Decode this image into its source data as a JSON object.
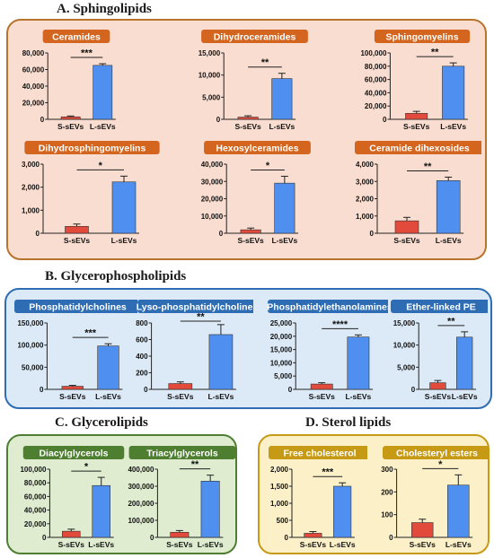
{
  "sections": {
    "a": "A. Sphingolipids",
    "b": "B. Glycerophospholipids",
    "c": "C. Glycerolipids",
    "d": "D. Sterol lipids"
  },
  "colors": {
    "s_sevs": "#e24a3b",
    "l_sevs": "#4f8ff0",
    "sphingolipids_badge": "#d4651f",
    "glycerophospholipids_badge": "#2e6db4",
    "glycerolipids_badge": "#4e7f30",
    "sterol_badge": "#c79a16"
  },
  "chart_data": [
    {
      "type": "bar",
      "title": "Ceramides",
      "categories": [
        "S-sEVs",
        "L-sEVs"
      ],
      "values": [
        3000,
        65000
      ],
      "errors": [
        1000,
        2000
      ],
      "ylim": [
        0,
        80000
      ],
      "yticks": [
        "0",
        "20,000",
        "40,000",
        "60,000",
        "80,000"
      ],
      "significance": "***",
      "group": "sphingolipids"
    },
    {
      "type": "bar",
      "title": "Dihydroceramides",
      "categories": [
        "S-sEVs",
        "L-sEVs"
      ],
      "values": [
        500,
        9200
      ],
      "errors": [
        300,
        1200
      ],
      "ylim": [
        0,
        15000
      ],
      "yticks": [
        "0",
        "5,000",
        "10,000",
        "15,000"
      ],
      "significance": "**",
      "group": "sphingolipids"
    },
    {
      "type": "bar",
      "title": "Sphingomyelins",
      "categories": [
        "S-sEVs",
        "L-sEVs"
      ],
      "values": [
        9000,
        80000
      ],
      "errors": [
        3000,
        5000
      ],
      "ylim": [
        0,
        100000
      ],
      "yticks": [
        "0",
        "20,000",
        "40,000",
        "60,000",
        "80,000",
        "100,000"
      ],
      "significance": "**",
      "group": "sphingolipids"
    },
    {
      "type": "bar",
      "title": "Dihydrosphingomyelins",
      "categories": [
        "S-sEVs",
        "L-sEVs"
      ],
      "values": [
        300,
        2230
      ],
      "errors": [
        100,
        250
      ],
      "ylim": [
        0,
        3000
      ],
      "yticks": [
        "0",
        "1,000",
        "2,000",
        "3,000"
      ],
      "significance": "*",
      "group": "sphingolipids"
    },
    {
      "type": "bar",
      "title": "Hexosylceramides",
      "categories": [
        "S-sEVs",
        "L-sEVs"
      ],
      "values": [
        2000,
        29000
      ],
      "errors": [
        1000,
        4000
      ],
      "ylim": [
        0,
        40000
      ],
      "yticks": [
        "0",
        "10,000",
        "20,000",
        "30,000",
        "40,000"
      ],
      "significance": "*",
      "group": "sphingolipids"
    },
    {
      "type": "bar",
      "title": "Ceramide dihexosides",
      "categories": [
        "S-sEVs",
        "L-sEVs"
      ],
      "values": [
        720,
        3050
      ],
      "errors": [
        200,
        200
      ],
      "ylim": [
        0,
        4000
      ],
      "yticks": [
        "0",
        "1,000",
        "2,000",
        "3,000",
        "4,000"
      ],
      "significance": "**",
      "group": "sphingolipids"
    },
    {
      "type": "bar",
      "title": "Phosphatidylcholines",
      "categories": [
        "S-sEVs",
        "L-sEVs"
      ],
      "values": [
        7000,
        98000
      ],
      "errors": [
        2000,
        5000
      ],
      "ylim": [
        0,
        150000
      ],
      "yticks": [
        "0",
        "50,000",
        "100,000",
        "150,000"
      ],
      "significance": "***",
      "group": "glycerophospholipids"
    },
    {
      "type": "bar",
      "title": "Lyso-phosphatidylcholines",
      "categories": [
        "S-sEVs",
        "L-sEVs"
      ],
      "values": [
        70,
        660
      ],
      "errors": [
        20,
        120
      ],
      "ylim": [
        0,
        800
      ],
      "yticks": [
        "0",
        "200",
        "400",
        "600",
        "800"
      ],
      "significance": "**",
      "group": "glycerophospholipids"
    },
    {
      "type": "bar",
      "title": "Phosphatidylethanolamines",
      "categories": [
        "S-sEVs",
        "L-sEVs"
      ],
      "values": [
        2000,
        19700
      ],
      "errors": [
        500,
        800
      ],
      "ylim": [
        0,
        25000
      ],
      "yticks": [
        "0",
        "5,000",
        "10,000",
        "15,000",
        "20,000",
        "25,000"
      ],
      "significance": "****",
      "group": "glycerophospholipids"
    },
    {
      "type": "bar",
      "title": "Ether-linked PE",
      "categories": [
        "S-sEVs",
        "L-sEVs"
      ],
      "values": [
        1500,
        11800
      ],
      "errors": [
        500,
        1200
      ],
      "ylim": [
        0,
        15000
      ],
      "yticks": [
        "0",
        "5,000",
        "10,000",
        "15,000"
      ],
      "significance": "**",
      "group": "glycerophospholipids"
    },
    {
      "type": "bar",
      "title": "Diacylglycerols",
      "categories": [
        "S-sEVs",
        "L-sEVs"
      ],
      "values": [
        9000,
        76000
      ],
      "errors": [
        3000,
        12000
      ],
      "ylim": [
        0,
        100000
      ],
      "yticks": [
        "0",
        "20,000",
        "40,000",
        "60,000",
        "80,000",
        "100,000"
      ],
      "significance": "*",
      "group": "glycerolipids"
    },
    {
      "type": "bar",
      "title": "Triacylglycerols",
      "categories": [
        "S-sEVs",
        "L-sEVs"
      ],
      "values": [
        30000,
        330000
      ],
      "errors": [
        10000,
        35000
      ],
      "ylim": [
        0,
        400000
      ],
      "yticks": [
        "0",
        "100,000",
        "200,000",
        "300,000",
        "400,000"
      ],
      "significance": "**",
      "group": "glycerolipids"
    },
    {
      "type": "bar",
      "title": "Free cholesterol",
      "categories": [
        "S-sEVs",
        "L-sEVs"
      ],
      "values": [
        120,
        1500
      ],
      "errors": [
        50,
        100
      ],
      "ylim": [
        0,
        2000
      ],
      "yticks": [
        "0",
        "500",
        "1,000",
        "1,500",
        "2,000"
      ],
      "significance": "***",
      "group": "sterol"
    },
    {
      "type": "bar",
      "title": "Cholesteryl esters",
      "categories": [
        "S-sEVs",
        "L-sEVs"
      ],
      "values": [
        65,
        230
      ],
      "errors": [
        15,
        45
      ],
      "ylim": [
        0,
        300
      ],
      "yticks": [
        "0",
        "100",
        "200",
        "300"
      ],
      "significance": "*",
      "group": "sterol"
    }
  ]
}
